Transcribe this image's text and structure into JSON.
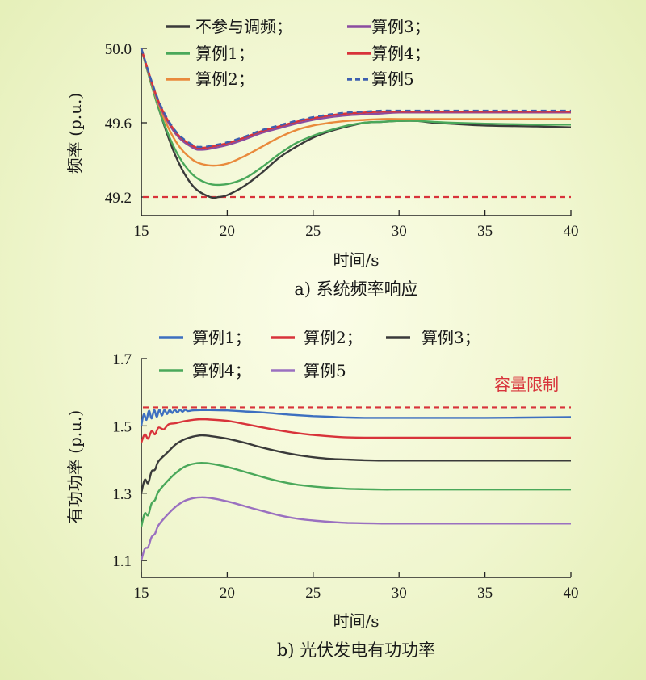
{
  "chart_data": [
    {
      "type": "line",
      "caption": "a) 系统频率响应",
      "xlabel": "时间/s",
      "ylabel": "频率 (p.u.)",
      "xlim": [
        15,
        40
      ],
      "ylim": [
        49.1,
        50.0
      ],
      "xticks": [
        15,
        20,
        25,
        30,
        35,
        40
      ],
      "xtick_labels": [
        "15",
        "20",
        "25",
        "30",
        "35",
        "40"
      ],
      "yticks": [
        50.0,
        49.6,
        49.2
      ],
      "ytick_labels": [
        "50.0",
        "49.6",
        "49.2"
      ],
      "legend": "top",
      "series": [
        {
          "name": "不参与调频；",
          "color": "#3a3a3a",
          "dash": false,
          "x": [
            15,
            16,
            17,
            18,
            19,
            19.5,
            20,
            21,
            22,
            23,
            24,
            25,
            26,
            27,
            28,
            29,
            30,
            31,
            32,
            33,
            35,
            38,
            40
          ],
          "y": [
            50.0,
            49.68,
            49.42,
            49.26,
            49.2,
            49.2,
            49.21,
            49.26,
            49.33,
            49.41,
            49.47,
            49.52,
            49.555,
            49.58,
            49.6,
            49.605,
            49.61,
            49.61,
            49.6,
            49.595,
            49.585,
            49.58,
            49.575
          ]
        },
        {
          "name": "算例1；",
          "color": "#4aa85a",
          "dash": false,
          "x": [
            15,
            16,
            17,
            18,
            19,
            20,
            21,
            22,
            23,
            24,
            25,
            26,
            27,
            28,
            29,
            30,
            31,
            32,
            33,
            35,
            38,
            40
          ],
          "y": [
            50.0,
            49.68,
            49.45,
            49.32,
            49.27,
            49.27,
            49.3,
            49.36,
            49.43,
            49.49,
            49.53,
            49.56,
            49.585,
            49.6,
            49.605,
            49.61,
            49.61,
            49.605,
            49.6,
            49.595,
            49.59,
            49.59
          ]
        },
        {
          "name": "算例2；",
          "color": "#e98a3c",
          "dash": false,
          "x": [
            15,
            16,
            17,
            18,
            19,
            20,
            21,
            22,
            23,
            24,
            25,
            26,
            27,
            28,
            29,
            30,
            32,
            35,
            38,
            40
          ],
          "y": [
            50.0,
            49.7,
            49.5,
            49.4,
            49.37,
            49.38,
            49.42,
            49.47,
            49.52,
            49.56,
            49.585,
            49.6,
            49.61,
            49.615,
            49.62,
            49.62,
            49.62,
            49.62,
            49.62,
            49.62
          ]
        },
        {
          "name": "算例3；",
          "color": "#8a4ca0",
          "dash": false,
          "x": [
            15,
            16,
            17,
            18,
            18.5,
            19,
            20,
            21,
            22,
            23,
            24,
            25,
            26,
            27,
            28,
            29,
            30,
            32,
            35,
            38,
            40
          ],
          "y": [
            50.0,
            49.71,
            49.54,
            49.465,
            49.455,
            49.46,
            49.48,
            49.51,
            49.545,
            49.57,
            49.595,
            49.615,
            49.63,
            49.64,
            49.645,
            49.65,
            49.655,
            49.655,
            49.655,
            49.655,
            49.655
          ]
        },
        {
          "name": "算例4；",
          "color": "#d8333a",
          "dash": false,
          "x": [
            15,
            16,
            17,
            18,
            18.5,
            19,
            20,
            21,
            22,
            23,
            24,
            25,
            26,
            27,
            28,
            29,
            30,
            32,
            35,
            38,
            40
          ],
          "y": [
            50.0,
            49.715,
            49.55,
            49.475,
            49.465,
            49.47,
            49.49,
            49.52,
            49.555,
            49.58,
            49.605,
            49.625,
            49.64,
            49.65,
            49.655,
            49.66,
            49.66,
            49.66,
            49.66,
            49.66,
            49.66
          ]
        },
        {
          "name": "算例5",
          "color": "#3d5fb0",
          "dash": true,
          "x": [
            15,
            16,
            17,
            18,
            18.5,
            19,
            20,
            21,
            22,
            23,
            24,
            25,
            26,
            27,
            28,
            29,
            30,
            32,
            35,
            38,
            40
          ],
          "y": [
            50.0,
            49.72,
            49.555,
            49.48,
            49.47,
            49.475,
            49.495,
            49.525,
            49.56,
            49.585,
            49.61,
            49.63,
            49.645,
            49.655,
            49.66,
            49.665,
            49.665,
            49.665,
            49.665,
            49.665,
            49.665
          ]
        }
      ],
      "hlines": [
        {
          "y": 49.2,
          "color": "#d8333a",
          "dash": true,
          "label": ""
        }
      ]
    },
    {
      "type": "line",
      "caption": "b) 光伏发电有功功率",
      "xlabel": "时间/s",
      "ylabel": "有功功率 (p.u.)",
      "xlim": [
        15,
        40
      ],
      "ylim": [
        1.05,
        1.7
      ],
      "xticks": [
        15,
        20,
        25,
        30,
        35,
        40
      ],
      "xtick_labels": [
        "15",
        "20",
        "25",
        "30",
        "35",
        "40"
      ],
      "yticks": [
        1.7,
        1.5,
        1.3,
        1.1
      ],
      "ytick_labels": [
        "1.7",
        "1.5",
        "1.3",
        "1.1"
      ],
      "legend": "top",
      "series": [
        {
          "name": "算例1；",
          "color": "#3d6fc0",
          "dash": false,
          "x": [
            15,
            15.15,
            15.3,
            15.45,
            15.6,
            15.75,
            15.9,
            16.05,
            16.2,
            16.35,
            16.5,
            16.65,
            16.8,
            16.95,
            17.1,
            17.25,
            17.4,
            17.55,
            17.7,
            18,
            18.5,
            19,
            20,
            21,
            22,
            23,
            24,
            25,
            26,
            27,
            28,
            30,
            35,
            40
          ],
          "y": [
            1.5,
            1.535,
            1.518,
            1.545,
            1.522,
            1.547,
            1.527,
            1.548,
            1.531,
            1.548,
            1.535,
            1.548,
            1.538,
            1.548,
            1.54,
            1.548,
            1.542,
            1.548,
            1.544,
            1.546,
            1.547,
            1.547,
            1.546,
            1.543,
            1.54,
            1.536,
            1.532,
            1.529,
            1.527,
            1.525,
            1.524,
            1.524,
            1.524,
            1.526
          ]
        },
        {
          "name": "算例2；",
          "color": "#d8333a",
          "dash": false,
          "x": [
            15,
            15.2,
            15.4,
            15.6,
            15.8,
            16,
            16.3,
            16.6,
            17,
            17.5,
            18,
            18.5,
            19,
            20,
            21,
            22,
            23,
            24,
            25,
            26,
            27,
            28,
            29,
            30,
            32,
            35,
            40
          ],
          "y": [
            1.45,
            1.475,
            1.462,
            1.485,
            1.475,
            1.495,
            1.49,
            1.505,
            1.508,
            1.514,
            1.518,
            1.52,
            1.519,
            1.515,
            1.506,
            1.496,
            1.487,
            1.479,
            1.473,
            1.469,
            1.466,
            1.465,
            1.465,
            1.465,
            1.465,
            1.465,
            1.465
          ]
        },
        {
          "name": "算例3；",
          "color": "#3a3a3a",
          "dash": false,
          "x": [
            15,
            15.2,
            15.4,
            15.6,
            15.8,
            16,
            16.5,
            17,
            17.5,
            18,
            18.5,
            19,
            20,
            21,
            22,
            23,
            24,
            25,
            26,
            27,
            28,
            29,
            30,
            32,
            35,
            40
          ],
          "y": [
            1.3,
            1.34,
            1.33,
            1.365,
            1.37,
            1.395,
            1.42,
            1.445,
            1.46,
            1.468,
            1.472,
            1.47,
            1.462,
            1.45,
            1.436,
            1.424,
            1.414,
            1.407,
            1.402,
            1.4,
            1.398,
            1.397,
            1.397,
            1.397,
            1.397,
            1.397
          ]
        },
        {
          "name": "算例4；",
          "color": "#4aa85a",
          "dash": false,
          "x": [
            15,
            15.2,
            15.4,
            15.6,
            15.8,
            16,
            16.5,
            17,
            17.5,
            18,
            18.5,
            19,
            20,
            21,
            22,
            23,
            24,
            25,
            26,
            27,
            28,
            29,
            30,
            32,
            35,
            40
          ],
          "y": [
            1.2,
            1.24,
            1.235,
            1.27,
            1.28,
            1.305,
            1.335,
            1.36,
            1.378,
            1.387,
            1.39,
            1.388,
            1.378,
            1.364,
            1.349,
            1.336,
            1.326,
            1.32,
            1.316,
            1.313,
            1.312,
            1.311,
            1.311,
            1.311,
            1.311,
            1.311
          ]
        },
        {
          "name": "算例5",
          "color": "#9a70c0",
          "dash": false,
          "x": [
            15,
            15.2,
            15.4,
            15.6,
            15.8,
            16,
            16.5,
            17,
            17.5,
            18,
            18.5,
            19,
            20,
            21,
            22,
            23,
            24,
            25,
            26,
            27,
            28,
            29,
            30,
            32,
            35,
            40
          ],
          "y": [
            1.1,
            1.135,
            1.14,
            1.17,
            1.18,
            1.205,
            1.235,
            1.26,
            1.277,
            1.285,
            1.288,
            1.286,
            1.276,
            1.262,
            1.248,
            1.235,
            1.225,
            1.219,
            1.215,
            1.212,
            1.211,
            1.21,
            1.21,
            1.21,
            1.21,
            1.21
          ]
        }
      ],
      "hlines": [
        {
          "y": 1.555,
          "color": "#d8333a",
          "dash": true,
          "label": "容量限制"
        }
      ]
    }
  ]
}
